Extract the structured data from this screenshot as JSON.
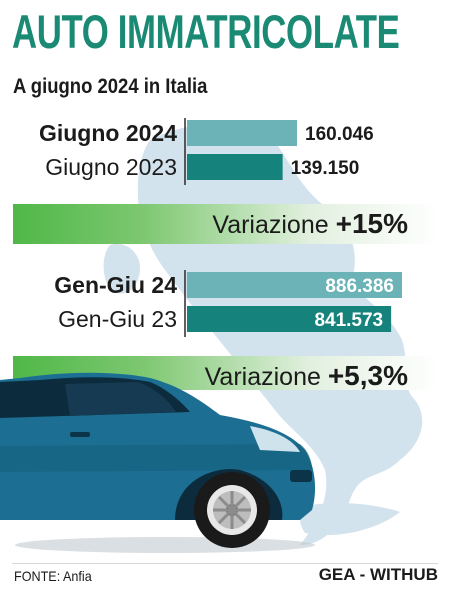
{
  "title": "AUTO IMMATRICOLATE",
  "subtitle": "A giugno 2024 in Italia",
  "colors": {
    "title": "#1b8a74",
    "bar_current": "#6bb3b6",
    "bar_previous": "#15837c",
    "band_green": "#4fb848",
    "map": "#d3e3ee",
    "car_body": "#1c6f92"
  },
  "chart_data": [
    {
      "type": "bar",
      "categories": [
        "Giugno 2024",
        "Giugno 2023"
      ],
      "values": [
        160046,
        139150
      ],
      "value_labels": [
        "160.046",
        "139.150"
      ],
      "variation_label": "Variazione",
      "variation_value": "+15%"
    },
    {
      "type": "bar",
      "categories": [
        "Gen-Giu 24",
        "Gen-Giu 23"
      ],
      "values": [
        886386,
        841573
      ],
      "value_labels": [
        "886.386",
        "841.573"
      ],
      "variation_label": "Variazione",
      "variation_value": "+5,3%"
    }
  ],
  "footer": {
    "source": "FONTE: Anfia",
    "credit": "GEA - WITHUB"
  },
  "icons": {
    "background": "italy-map-icon",
    "car": "car-icon"
  }
}
